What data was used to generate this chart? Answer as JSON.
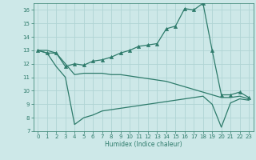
{
  "xlabel": "Humidex (Indice chaleur)",
  "xlim": [
    -0.5,
    23.5
  ],
  "ylim": [
    7,
    16.5
  ],
  "yticks": [
    7,
    8,
    9,
    10,
    11,
    12,
    13,
    14,
    15,
    16
  ],
  "xticks": [
    0,
    1,
    2,
    3,
    4,
    5,
    6,
    7,
    8,
    9,
    10,
    11,
    12,
    13,
    14,
    15,
    16,
    17,
    18,
    19,
    20,
    21,
    22,
    23
  ],
  "bg_color": "#cde8e8",
  "line_color": "#2e7b6b",
  "grid_color": "#b0d4d4",
  "lines": [
    {
      "x": [
        0,
        1,
        2,
        3,
        4,
        5,
        6,
        7,
        8,
        9,
        10,
        11,
        12,
        13,
        14,
        15,
        16,
        17,
        18,
        19,
        20,
        21,
        22,
        23
      ],
      "y": [
        13.0,
        12.8,
        12.8,
        11.8,
        12.0,
        11.9,
        12.2,
        12.3,
        12.5,
        12.8,
        13.0,
        13.3,
        13.4,
        13.5,
        14.6,
        14.8,
        16.1,
        16.0,
        16.5,
        13.0,
        9.7,
        9.7,
        9.9,
        9.5
      ],
      "marker": "^",
      "markersize": 3.0
    },
    {
      "x": [
        0,
        1,
        2,
        3,
        4,
        5,
        6,
        7,
        8,
        9,
        10,
        11,
        12,
        13,
        14,
        15,
        16,
        17,
        18,
        19,
        20,
        21,
        22,
        23
      ],
      "y": [
        13.0,
        13.0,
        12.8,
        12.0,
        11.2,
        11.3,
        11.3,
        11.3,
        11.2,
        11.2,
        11.1,
        11.0,
        10.9,
        10.8,
        10.7,
        10.5,
        10.3,
        10.1,
        9.9,
        9.7,
        9.5,
        9.5,
        9.6,
        9.4
      ],
      "marker": null,
      "markersize": 0
    },
    {
      "x": [
        0,
        1,
        2,
        3,
        4,
        5,
        6,
        7,
        8,
        9,
        10,
        11,
        12,
        13,
        14,
        15,
        16,
        17,
        18,
        19,
        20,
        21,
        22,
        23
      ],
      "y": [
        13.0,
        12.8,
        11.8,
        11.0,
        7.5,
        8.0,
        8.2,
        8.5,
        8.6,
        8.7,
        8.8,
        8.9,
        9.0,
        9.1,
        9.2,
        9.3,
        9.4,
        9.5,
        9.6,
        9.0,
        7.3,
        9.1,
        9.4,
        9.3
      ],
      "marker": null,
      "markersize": 0
    }
  ]
}
